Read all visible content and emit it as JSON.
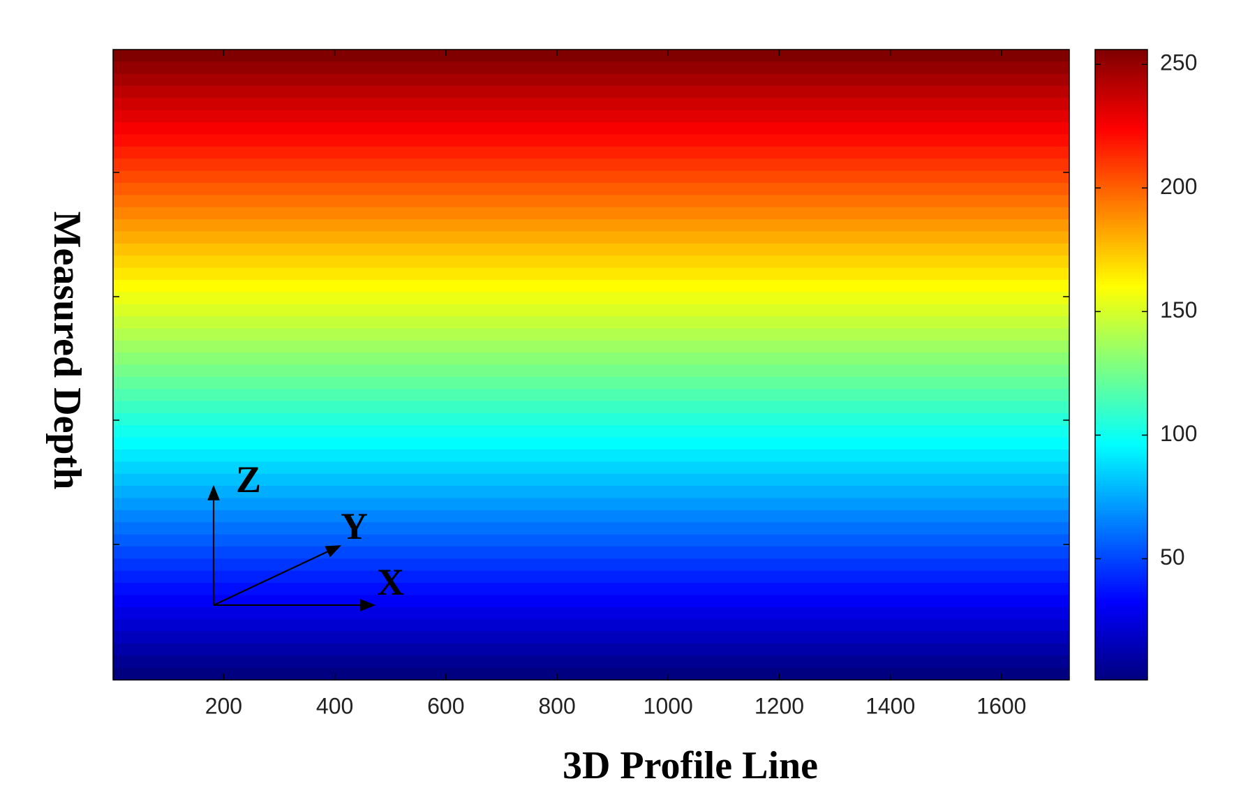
{
  "chart_data": {
    "type": "heatmap",
    "x_label": "3D Profile Line",
    "y_label": "Measured Depth",
    "xlim": [
      1,
      1722
    ],
    "xticks": [
      200,
      400,
      600,
      800,
      1000,
      1200,
      1400,
      1600
    ],
    "colormap": "jet",
    "clim": [
      1,
      256
    ],
    "cticks": [
      50,
      100,
      150,
      200,
      250
    ],
    "values": [
      256,
      251,
      246,
      241,
      236,
      231,
      226,
      221,
      216,
      211,
      206,
      201,
      196,
      191,
      186,
      181,
      176,
      171,
      166,
      161,
      156,
      151,
      146,
      141,
      136,
      131,
      126,
      121,
      116,
      111,
      106,
      101,
      96,
      91,
      86,
      81,
      76,
      71,
      66,
      61,
      56,
      51,
      46,
      41,
      36,
      31,
      26,
      21,
      16,
      11,
      6,
      1
    ],
    "annotations": [
      "Z",
      "Y",
      "X"
    ]
  }
}
